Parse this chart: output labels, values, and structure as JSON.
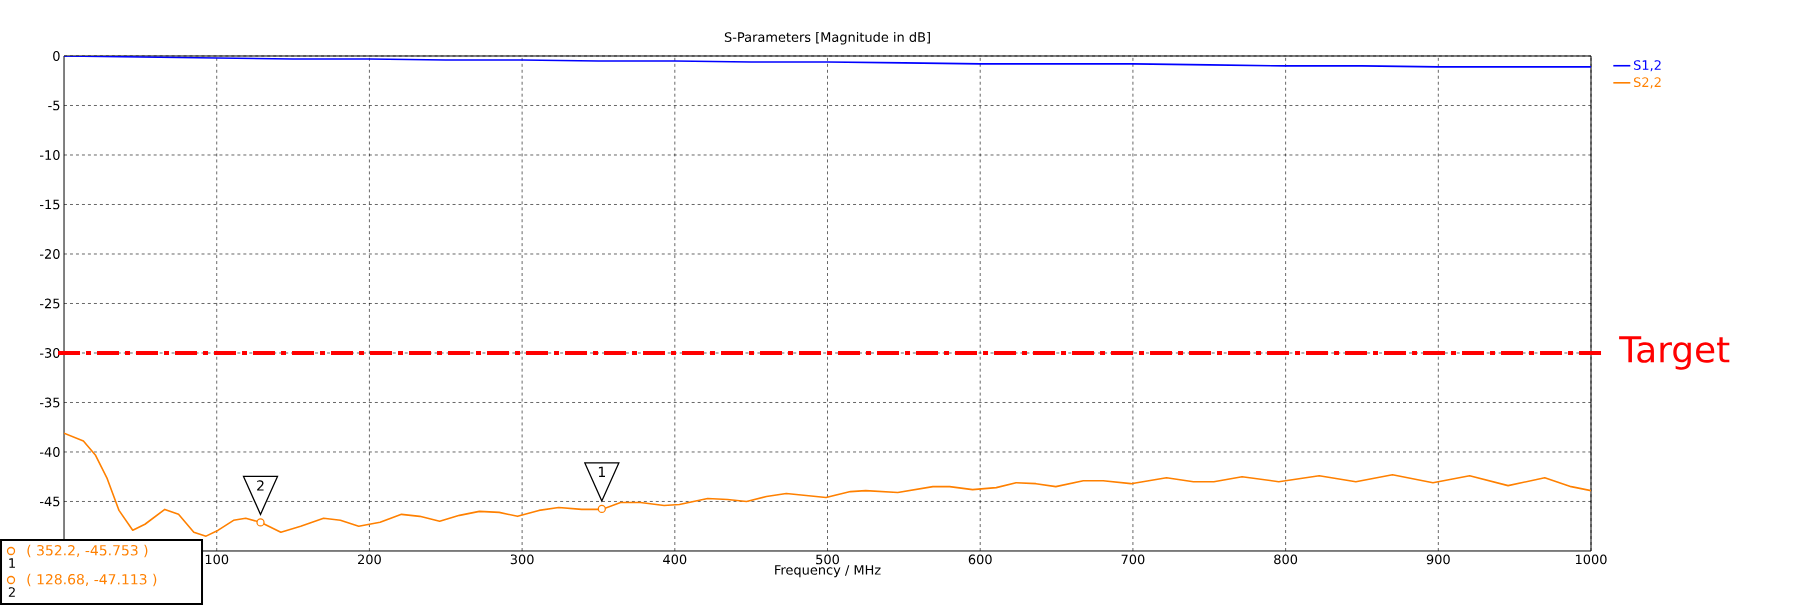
{
  "chart_data": {
    "type": "line",
    "title": "S-Parameters [Magnitude in dB]",
    "xlabel": "Frequency / MHz",
    "xlim": [
      0,
      1000
    ],
    "ylim": [
      -50,
      0
    ],
    "xticks": [
      100,
      200,
      300,
      400,
      500,
      600,
      700,
      800,
      900,
      1000
    ],
    "yticks": [
      0,
      -5,
      -10,
      -15,
      -20,
      -25,
      -30,
      -35,
      -40,
      -45
    ],
    "grid": true,
    "legend": "top right",
    "line_style": "solid",
    "series": [
      {
        "name": "S1,2",
        "color": "#0000ff",
        "x": [
          0,
          50,
          100,
          150,
          200,
          250,
          300,
          350,
          400,
          450,
          500,
          550,
          600,
          650,
          700,
          750,
          800,
          850,
          900,
          950,
          1000
        ],
        "values": [
          0,
          -0.1,
          -0.2,
          -0.3,
          -0.3,
          -0.4,
          -0.4,
          -0.5,
          -0.5,
          -0.6,
          -0.6,
          -0.7,
          -0.8,
          -0.8,
          -0.8,
          -0.9,
          -1.0,
          -1.0,
          -1.1,
          -1.1,
          -1.1
        ]
      },
      {
        "name": "S2,2",
        "color": "#ff8000",
        "x": [
          0,
          12.7,
          20.5,
          28.3,
          36,
          45,
          53,
          66,
          75,
          85,
          93,
          101,
          111,
          119,
          128.68,
          142,
          155,
          170,
          181,
          193,
          207,
          221,
          233,
          246,
          259,
          272,
          285,
          297,
          311,
          324,
          339,
          352.2,
          364.5,
          377.5,
          393,
          403,
          421.5,
          434.5,
          447,
          460,
          473,
          486,
          499,
          515,
          525,
          546,
          569,
          580,
          595,
          610.5,
          623.5,
          636.5,
          649.5,
          667.5,
          680.5,
          698.7,
          722,
          739.6,
          753,
          771.5,
          795.5,
          822,
          846,
          870,
          896.5,
          920.5,
          945.7,
          969.7,
          987,
          1000
        ],
        "values": [
          -38.1,
          -38.9,
          -40.3,
          -42.7,
          -45.9,
          -47.9,
          -47.3,
          -45.8,
          -46.3,
          -48.1,
          -48.5,
          -47.9,
          -46.9,
          -46.7,
          -47.1,
          -48.1,
          -47.5,
          -46.7,
          -46.9,
          -47.5,
          -47.1,
          -46.3,
          -46.5,
          -47.0,
          -46.4,
          -46.0,
          -46.1,
          -46.5,
          -45.9,
          -45.6,
          -45.8,
          -45.8,
          -45.1,
          -45.1,
          -45.4,
          -45.3,
          -44.7,
          -44.8,
          -45.0,
          -44.5,
          -44.2,
          -44.4,
          -44.6,
          -44.0,
          -43.9,
          -44.1,
          -43.5,
          -43.5,
          -43.8,
          -43.6,
          -43.1,
          -43.2,
          -43.5,
          -42.9,
          -42.9,
          -43.2,
          -42.6,
          -43.0,
          -43.0,
          -42.5,
          -43.0,
          -42.4,
          -43.0,
          -42.3,
          -43.1,
          -42.4,
          -43.4,
          -42.6,
          -43.5,
          -43.9
        ]
      }
    ],
    "ref_lines": [
      {
        "axis": "y",
        "value": -30,
        "label": "Target",
        "color": "#ff0000",
        "line_style": "dashed"
      }
    ],
    "annotations": [
      {
        "text": "1",
        "x": 352.2,
        "y": -45.753
      },
      {
        "text": "2",
        "x": 128.68,
        "y": -47.113
      },
      "( 352.2, -45.753 )",
      "( 128.68, -47.113 )"
    ]
  }
}
